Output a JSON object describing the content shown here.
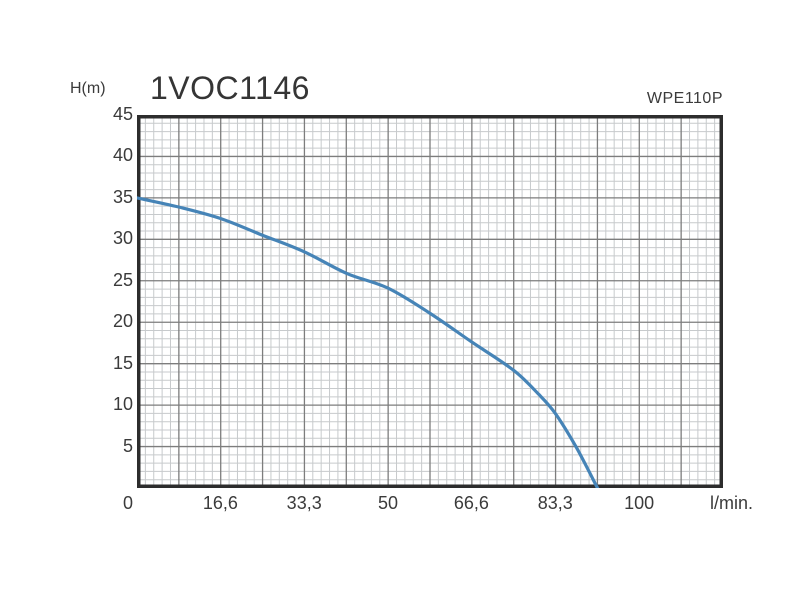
{
  "header": {
    "title": "1VOC1146",
    "model": "WPE110P"
  },
  "colors": {
    "background": "#ffffff",
    "text": "#3b3b3b",
    "curve": "#4684b7",
    "grid_minor": "#c7cacc",
    "grid_major": "#7d7d7d",
    "plot_border": "#2d2d2d"
  },
  "chart_data": {
    "type": "line",
    "title": "1VOC1146",
    "right_label": "WPE110P",
    "xlabel": "l/min.",
    "ylabel": "H(m)",
    "xlim": [
      0,
      116.7
    ],
    "ylim": [
      0,
      45
    ],
    "grid": {
      "visible": true,
      "minor_x_step": 1.667,
      "major_x_step": 8.333,
      "minor_y_step": 1,
      "major_y_step": 5
    },
    "x_ticks": [
      {
        "value": 0,
        "label": "0",
        "dx": -9
      },
      {
        "value": 16.6,
        "label": "16,6",
        "dx": 0
      },
      {
        "value": 33.3,
        "label": "33,3",
        "dx": 0
      },
      {
        "value": 50,
        "label": "50",
        "dx": 0
      },
      {
        "value": 66.6,
        "label": "66,6",
        "dx": 0
      },
      {
        "value": 83.3,
        "label": "83,3",
        "dx": 0
      },
      {
        "value": 100,
        "label": "100",
        "dx": 0
      }
    ],
    "y_ticks": [
      {
        "value": 45,
        "label": "45"
      },
      {
        "value": 40,
        "label": "40"
      },
      {
        "value": 35,
        "label": "35"
      },
      {
        "value": 30,
        "label": "30"
      },
      {
        "value": 25,
        "label": "25"
      },
      {
        "value": 20,
        "label": "20"
      },
      {
        "value": 15,
        "label": "15"
      },
      {
        "value": 10,
        "label": "10"
      },
      {
        "value": 5,
        "label": "5"
      }
    ],
    "series": [
      {
        "name": "WPE110P",
        "color": "#4684b7",
        "points": [
          [
            0,
            35
          ],
          [
            8.3,
            33.9
          ],
          [
            16.7,
            32.5
          ],
          [
            25,
            30.5
          ],
          [
            33.3,
            28.5
          ],
          [
            41.7,
            25.9
          ],
          [
            50,
            24.1
          ],
          [
            58.3,
            21.1
          ],
          [
            66.7,
            17.6
          ],
          [
            75,
            14.2
          ],
          [
            80,
            11.3
          ],
          [
            83.3,
            9.0
          ],
          [
            87.5,
            4.9
          ],
          [
            91.7,
            0
          ]
        ]
      }
    ]
  }
}
